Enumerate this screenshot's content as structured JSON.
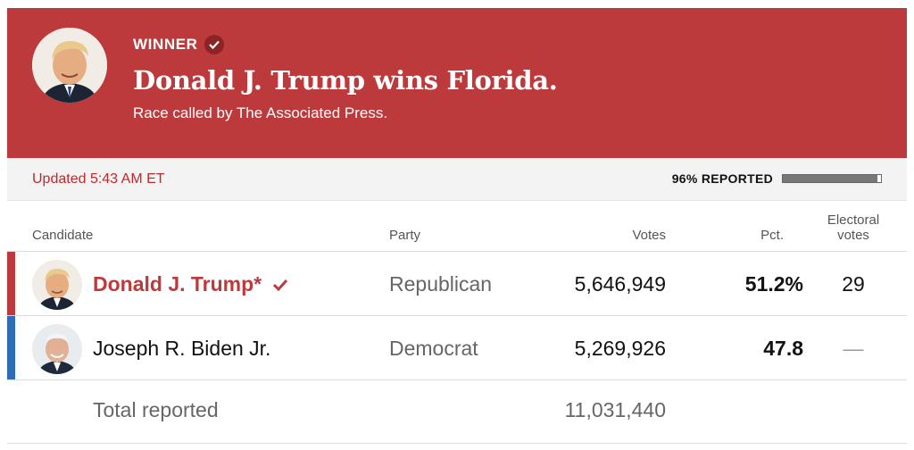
{
  "banner": {
    "winner_label": "WINNER",
    "headline": "Donald J. Trump wins Florida.",
    "subhead": "Race called by The Associated Press.",
    "background_color": "#bc3a3c",
    "check_icon": "check-icon"
  },
  "status": {
    "updated": "Updated 5:43 AM ET",
    "reported_label": "96% REPORTED",
    "reported_fraction": 0.96
  },
  "table": {
    "headers": {
      "candidate": "Candidate",
      "party": "Party",
      "votes": "Votes",
      "pct": "Pct.",
      "electoral_line1": "Electoral",
      "electoral_line2": "votes"
    },
    "rows": [
      {
        "name": "Donald J. Trump*",
        "party": "Republican",
        "votes": "5,646,949",
        "pct": "51.2%",
        "electoral": "29",
        "winner": true,
        "party_color": "#bc3a3c"
      },
      {
        "name": "Joseph R. Biden Jr.",
        "party": "Democrat",
        "votes": "5,269,926",
        "pct": "47.8",
        "electoral": "—",
        "winner": false,
        "party_color": "#2e6cb5"
      }
    ],
    "total_label": "Total reported",
    "total_votes": "11,031,440"
  }
}
